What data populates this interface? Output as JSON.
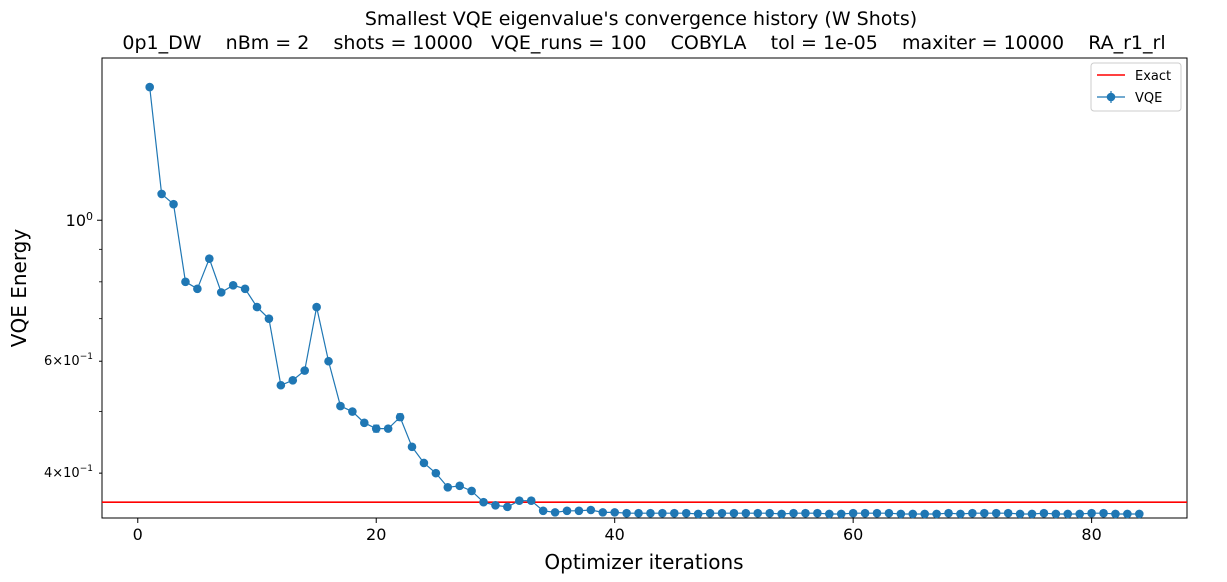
{
  "chart_data": {
    "type": "line",
    "title": "Smallest VQE eigenvalue's convergence history (W Shots)",
    "subtitle": "0p1_DW    nBm = 2    shots = 10000   VQE_runs = 100    COBYLA    tol = 1e-05    maxiter = 10000    RA_r1_rl",
    "xlabel": "Optimizer iterations",
    "ylabel": "VQE Energy",
    "yscale": "log",
    "xlim": [
      -3,
      88
    ],
    "ylim": [
      0.34,
      1.8
    ],
    "grid": false,
    "legend_position": "top-right",
    "x_ticks": [
      0,
      20,
      40,
      60,
      80
    ],
    "y_ticks": [
      {
        "value": 1.0,
        "label": "10^0",
        "major": true
      },
      {
        "value": 0.6,
        "label": "6×10^-1",
        "major": false
      },
      {
        "value": 0.4,
        "label": "4×10^-1",
        "major": false
      }
    ],
    "y_minor_ticks": [
      0.5,
      0.7,
      0.8,
      0.9
    ],
    "exact": {
      "name": "Exact",
      "value": 0.36,
      "color": "#ff0000"
    },
    "series": [
      {
        "name": "VQE",
        "color": "#1f77b4",
        "x": [
          1,
          2,
          3,
          4,
          5,
          6,
          7,
          8,
          9,
          10,
          11,
          12,
          13,
          14,
          15,
          16,
          17,
          18,
          19,
          20,
          21,
          22,
          23,
          24,
          25,
          26,
          27,
          28,
          29,
          30,
          31,
          32,
          33,
          34,
          35,
          36,
          37,
          38,
          39,
          40,
          41,
          42,
          43,
          44,
          45,
          46,
          47,
          48,
          49,
          50,
          51,
          52,
          53,
          54,
          55,
          56,
          57,
          58,
          59,
          60,
          61,
          62,
          63,
          64,
          65,
          66,
          67,
          68,
          69,
          70,
          71,
          72,
          73,
          74,
          75,
          76,
          77,
          78,
          79,
          80,
          81,
          82,
          83,
          84
        ],
        "y": [
          1.62,
          1.1,
          1.06,
          0.8,
          0.78,
          0.87,
          0.77,
          0.79,
          0.78,
          0.73,
          0.7,
          0.55,
          0.56,
          0.58,
          0.73,
          0.6,
          0.51,
          0.5,
          0.48,
          0.47,
          0.47,
          0.49,
          0.44,
          0.415,
          0.4,
          0.38,
          0.382,
          0.375,
          0.36,
          0.356,
          0.354,
          0.362,
          0.362,
          0.349,
          0.347,
          0.349,
          0.349,
          0.35,
          0.347,
          0.347,
          0.346,
          0.346,
          0.346,
          0.346,
          0.346,
          0.346,
          0.345,
          0.346,
          0.346,
          0.346,
          0.346,
          0.346,
          0.346,
          0.345,
          0.346,
          0.346,
          0.346,
          0.345,
          0.345,
          0.346,
          0.346,
          0.346,
          0.346,
          0.345,
          0.345,
          0.345,
          0.345,
          0.346,
          0.345,
          0.346,
          0.346,
          0.346,
          0.346,
          0.345,
          0.345,
          0.346,
          0.345,
          0.345,
          0.345,
          0.346,
          0.346,
          0.345,
          0.345,
          0.345
        ],
        "yerr": [
          0.004,
          0.004,
          0.004,
          0.003,
          0.003,
          0.003,
          0.003,
          0.003,
          0.003,
          0.003,
          0.003,
          0.003,
          0.003,
          0.003,
          0.003,
          0.003,
          0.003,
          0.003,
          0.003,
          0.006,
          0.003,
          0.006,
          0.003,
          0.003,
          0.003,
          0.003,
          0.003,
          0.003,
          0.003,
          0.003,
          0.003,
          0.003,
          0.003,
          0.003,
          0.003,
          0.003,
          0.003,
          0.003,
          0.003,
          0.003,
          0.003,
          0.003,
          0.003,
          0.003,
          0.003,
          0.003,
          0.003,
          0.003,
          0.003,
          0.003,
          0.003,
          0.003,
          0.003,
          0.003,
          0.003,
          0.003,
          0.003,
          0.003,
          0.003,
          0.003,
          0.003,
          0.003,
          0.003,
          0.003,
          0.003,
          0.003,
          0.003,
          0.003,
          0.003,
          0.003,
          0.003,
          0.003,
          0.003,
          0.003,
          0.003,
          0.003,
          0.003,
          0.003,
          0.003,
          0.003,
          0.003,
          0.003,
          0.003,
          0.003
        ]
      }
    ]
  }
}
